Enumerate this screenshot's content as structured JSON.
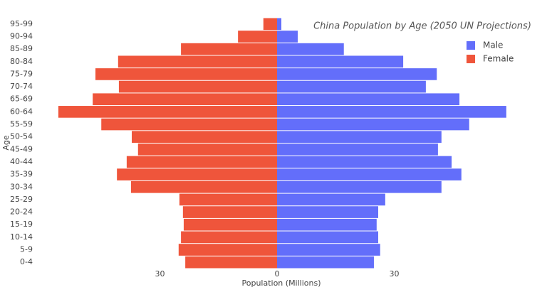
{
  "chart_data": {
    "type": "bar",
    "orientation": "horizontal",
    "barmode": "overlay",
    "title": "China Population by Age (2050 UN Projections)",
    "x_label": "Population (Millions)",
    "y_label": "Age",
    "categories": [
      "0-4",
      "5-9",
      "10-14",
      "15-19",
      "20-24",
      "25-29",
      "30-34",
      "35-39",
      "40-44",
      "45-49",
      "50-54",
      "55-59",
      "60-64",
      "65-69",
      "70-74",
      "75-79",
      "80-84",
      "85-89",
      "90-94",
      "95-99"
    ],
    "series": [
      {
        "name": "Male",
        "color": "#636efa",
        "values": [
          24.8,
          26.4,
          25.9,
          25.5,
          25.9,
          27.7,
          42.1,
          47.2,
          44.7,
          41.2,
          42.1,
          49.2,
          58.7,
          46.7,
          38.1,
          40.9,
          32.3,
          17.1,
          5.3,
          1.1
        ]
      },
      {
        "name": "Female",
        "color": "#ef553b",
        "values": [
          -23.5,
          -25.2,
          -24.6,
          -23.9,
          -24.1,
          -25.0,
          -37.4,
          -41.0,
          -38.5,
          -35.6,
          -37.2,
          -45.0,
          -56.0,
          -47.2,
          -40.5,
          -46.5,
          -40.7,
          -24.6,
          -10.0,
          -3.5
        ]
      }
    ],
    "xlim": [
      -61,
      65
    ],
    "xticks": [
      {
        "value": -30,
        "label": "30"
      },
      0,
      30
    ],
    "legend": "top-right"
  }
}
